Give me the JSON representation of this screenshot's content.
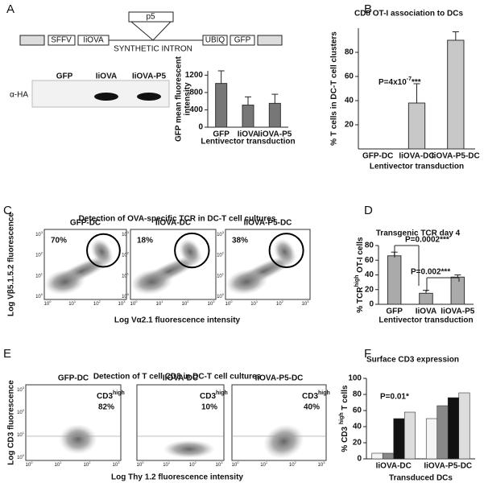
{
  "panel_labels": [
    "A",
    "B",
    "C",
    "D",
    "E",
    "F"
  ],
  "construct": {
    "insert": "p5",
    "segments": [
      "SFFV",
      "IiOVA",
      "UBIQ",
      "GFP"
    ],
    "intron": "SYNTHETIC INTRON"
  },
  "blot": {
    "row_label": "α-HA",
    "lanes": [
      "GFP",
      "IiOVA",
      "IiOVA-P5"
    ]
  },
  "flow_ticks": {
    "base": "10",
    "exponents": [
      "0",
      "1",
      "2",
      "3"
    ]
  },
  "flow_c": {
    "title": "Detection of OVA-specific TCR in DC-T cell cultures",
    "plots": [
      {
        "label": "GFP-DC",
        "percent": "70%"
      },
      {
        "label": "IiOVA-DC",
        "percent": "18%"
      },
      {
        "label": "IiOVA-P5-DC",
        "percent": "38%"
      }
    ],
    "ylabel": "Log Vβ5.1.5.2 fluorescence",
    "xlabel": "Log Vα2.1 fluorescence intensity"
  },
  "flow_e": {
    "title": "Detection of T cell CD3  in DC-T cell cultures",
    "plots": [
      {
        "label": "GFP-DC",
        "percent": "82%"
      },
      {
        "label": "IiOVA-DC",
        "percent": "10%"
      },
      {
        "label": "IiOVA-P5-DC",
        "percent": "40%"
      }
    ],
    "marker": {
      "text": "CD3",
      "sup": "high"
    },
    "ylabel": "Log CD3 fluorescence",
    "xlabel": "Log Thy 1.2 fluorescence intensity"
  },
  "chart_data": [
    {
      "type": "bar",
      "categories": [
        "GFP",
        "IiOVA",
        "IiOVA-P5"
      ],
      "values": [
        1010,
        510,
        550
      ],
      "errors": [
        290,
        190,
        210
      ],
      "color": "#777777",
      "ylim": [
        0,
        1300
      ],
      "yticks": [
        0,
        400,
        800,
        1200
      ],
      "ylabel": [
        "GFP mean fluorescent",
        "intensity"
      ],
      "xlabel": "Lentivector transduction"
    },
    {
      "type": "bar",
      "title": "CD8 OT-I association to DCs",
      "categories": [
        "GFP-DC",
        "IiOVA-DC",
        "IiOVA-P5-DC"
      ],
      "values": [
        0,
        38,
        90
      ],
      "errors": [
        0,
        16,
        7
      ],
      "color": "#c8c8c8",
      "ylim": [
        0,
        100
      ],
      "yticks": [
        20,
        40,
        60,
        80
      ],
      "ylabel": [
        "% T cells in DC-T cell clusters"
      ],
      "xlabel": "Lentivector transduction",
      "annotations": [
        {
          "text": "P=4x10",
          "sup": "-7",
          "after": "***"
        }
      ]
    },
    {
      "type": "bar",
      "title": "Transgenic TCR day 4",
      "categories": [
        "GFP",
        "IiOVA",
        "IiOVA-P5"
      ],
      "values": [
        66,
        15,
        37
      ],
      "errors": [
        5,
        4,
        3
      ],
      "color": "#aaaaaa",
      "ylim": [
        0,
        80
      ],
      "yticks": [
        0,
        20,
        40,
        60,
        80
      ],
      "ylabel": [
        {
          "text": "% TCR",
          "sup": "high",
          "after": " OT-I cells"
        }
      ],
      "xlabel": "Lentivector transduction",
      "annotations": [
        "P=0.0002***",
        "P=0.002***"
      ]
    },
    {
      "type": "grouped_bar",
      "title": "Surface CD3 expression",
      "categories": [
        "IiOVA-DC",
        "IiOVA-P5-DC"
      ],
      "series": [
        {
          "color": "#f4f4f4",
          "values": [
            7,
            50
          ]
        },
        {
          "color": "#888888",
          "values": [
            7,
            66
          ]
        },
        {
          "color": "#111111",
          "values": [
            50,
            76
          ]
        },
        {
          "color": "#dddddd",
          "values": [
            58,
            82
          ]
        }
      ],
      "ylim": [
        0,
        100
      ],
      "yticks": [
        0,
        20,
        40,
        60,
        80,
        100
      ],
      "ylabel": [
        {
          "text": "% CD3 ",
          "sup": "high",
          "after": " T cells"
        }
      ],
      "xlabel": "Transduced DCs",
      "annotations": [
        "P=0.01*"
      ]
    }
  ]
}
